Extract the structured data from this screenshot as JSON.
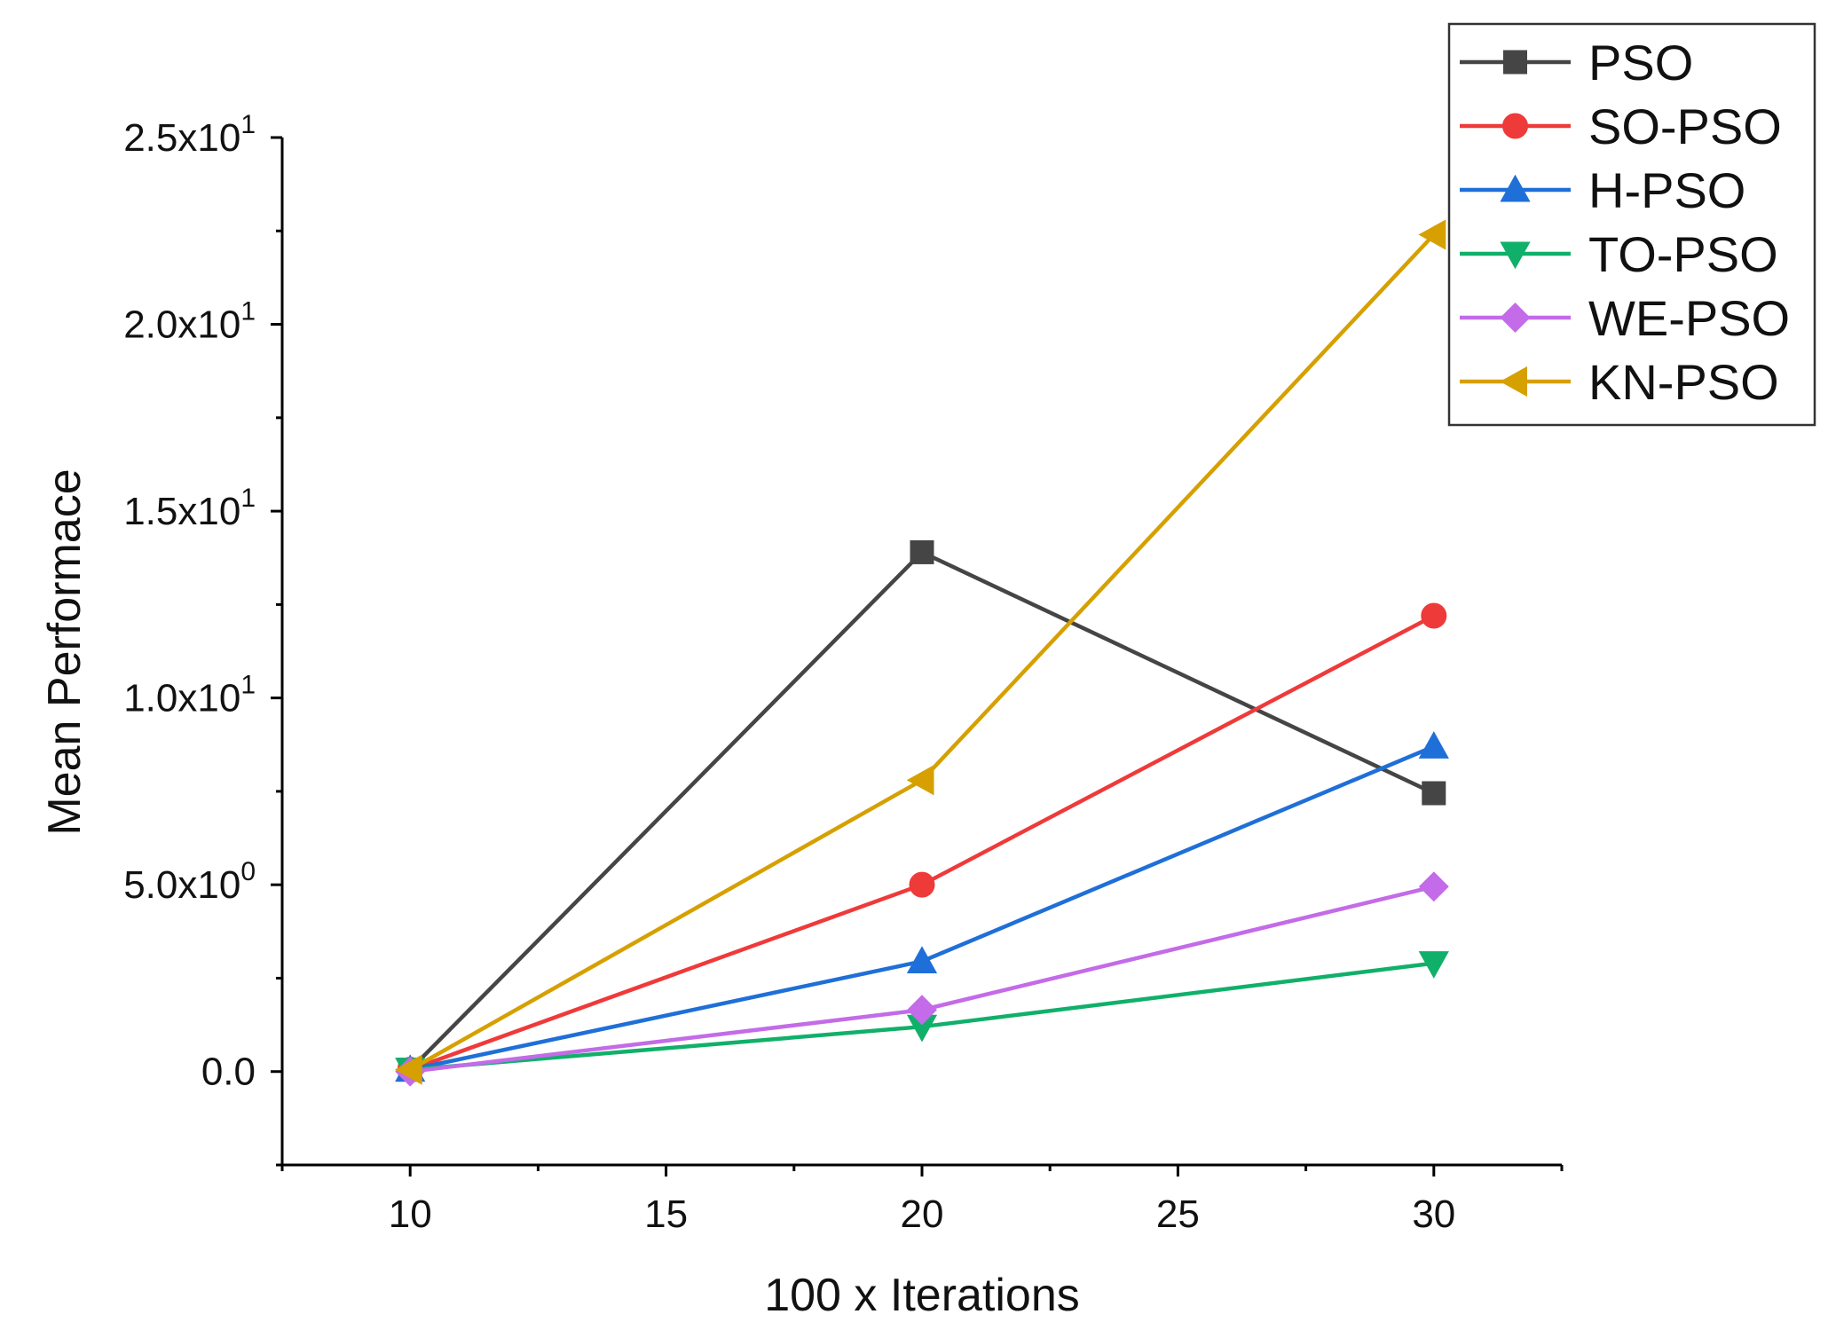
{
  "chart_data": {
    "type": "line",
    "title": "",
    "xlabel": "100 x Iterations",
    "ylabel": "Mean Performace",
    "x": [
      10,
      20,
      30
    ],
    "xlim": [
      7.5,
      32.5
    ],
    "ylim": [
      -2.5,
      25
    ],
    "x_ticks": [
      10,
      15,
      20,
      25,
      30
    ],
    "x_tick_labels": [
      "10",
      "15",
      "20",
      "25",
      "30"
    ],
    "y_ticks": [
      0,
      5,
      10,
      15,
      20,
      25
    ],
    "y_tick_labels": [
      {
        "mantissa": "0.0",
        "exp": ""
      },
      {
        "mantissa": "5.0x10",
        "exp": "0"
      },
      {
        "mantissa": "1.0x10",
        "exp": "1"
      },
      {
        "mantissa": "1.5x10",
        "exp": "1"
      },
      {
        "mantissa": "2.0x10",
        "exp": "1"
      },
      {
        "mantissa": "2.5x10",
        "exp": "1"
      }
    ],
    "grid": false,
    "legend_position": "top-right",
    "series": [
      {
        "name": "PSO",
        "color": "#454545",
        "marker": "square",
        "values": [
          0.05,
          13.9,
          7.45
        ]
      },
      {
        "name": "SO-PSO",
        "color": "#ef3a3a",
        "marker": "circle",
        "values": [
          0.05,
          5.0,
          12.2
        ]
      },
      {
        "name": "H-PSO",
        "color": "#1f6fd8",
        "marker": "triangle-up",
        "values": [
          0.05,
          2.95,
          8.7
        ]
      },
      {
        "name": "TO-PSO",
        "color": "#10b06a",
        "marker": "triangle-down",
        "values": [
          0.05,
          1.2,
          2.9
        ]
      },
      {
        "name": "WE-PSO",
        "color": "#c36be8",
        "marker": "diamond",
        "values": [
          0.0,
          1.65,
          4.95
        ]
      },
      {
        "name": "KN-PSO",
        "color": "#d6a000",
        "marker": "triangle-left",
        "values": [
          0.05,
          7.8,
          22.4
        ]
      }
    ]
  }
}
